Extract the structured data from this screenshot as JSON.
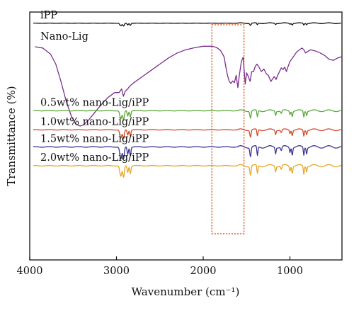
{
  "chart_data": {
    "type": "line",
    "title": "",
    "xlabel": "Wavenumber (cm⁻¹)",
    "ylabel": "Transmittance (%)",
    "x_reversed": true,
    "xlim": [
      4000,
      400
    ],
    "xticks": [
      4000,
      3000,
      2000,
      1000
    ],
    "grid": false,
    "legend": "inline labels above each trace",
    "highlight_box": {
      "x_range": [
        1900,
        1530
      ],
      "style": "dotted",
      "color": "#e0581f"
    },
    "series": [
      {
        "name": "iPP",
        "color": "#111111",
        "baseline": 0.955,
        "amplitude": 0.012,
        "bands": [
          [
            2950,
            16,
            0.9
          ],
          [
            2918,
            12,
            1.0
          ],
          [
            2870,
            10,
            0.6
          ],
          [
            2840,
            10,
            0.7
          ],
          [
            1455,
            10,
            0.7
          ],
          [
            1375,
            8,
            0.6
          ],
          [
            1165,
            8,
            0.4
          ],
          [
            1000,
            8,
            0.3
          ],
          [
            973,
            8,
            0.5
          ],
          [
            840,
            8,
            0.6
          ],
          [
            808,
            8,
            0.4
          ]
        ],
        "wave": 0.08
      },
      {
        "name": "Nano-Lig",
        "color": "#7a2e8f",
        "points": [
          [
            3940,
            0.86
          ],
          [
            3850,
            0.855
          ],
          [
            3760,
            0.83
          ],
          [
            3700,
            0.79
          ],
          [
            3640,
            0.72
          ],
          [
            3580,
            0.64
          ],
          [
            3520,
            0.58
          ],
          [
            3470,
            0.548
          ],
          [
            3420,
            0.54
          ],
          [
            3380,
            0.545
          ],
          [
            3320,
            0.565
          ],
          [
            3250,
            0.595
          ],
          [
            3180,
            0.625
          ],
          [
            3100,
            0.655
          ],
          [
            3020,
            0.675
          ],
          [
            2970,
            0.675
          ],
          [
            2940,
            0.69
          ],
          [
            2920,
            0.66
          ],
          [
            2900,
            0.68
          ],
          [
            2870,
            0.69
          ],
          [
            2850,
            0.7
          ],
          [
            2800,
            0.715
          ],
          [
            2700,
            0.74
          ],
          [
            2600,
            0.765
          ],
          [
            2500,
            0.79
          ],
          [
            2400,
            0.815
          ],
          [
            2300,
            0.835
          ],
          [
            2200,
            0.848
          ],
          [
            2100,
            0.856
          ],
          [
            2000,
            0.862
          ],
          [
            1900,
            0.862
          ],
          [
            1850,
            0.858
          ],
          [
            1800,
            0.845
          ],
          [
            1760,
            0.82
          ],
          [
            1740,
            0.78
          ],
          [
            1720,
            0.745
          ],
          [
            1700,
            0.72
          ],
          [
            1680,
            0.712
          ],
          [
            1660,
            0.722
          ],
          [
            1640,
            0.715
          ],
          [
            1620,
            0.745
          ],
          [
            1600,
            0.695
          ],
          [
            1585,
            0.74
          ],
          [
            1560,
            0.8
          ],
          [
            1540,
            0.818
          ],
          [
            1515,
            0.71
          ],
          [
            1500,
            0.755
          ],
          [
            1480,
            0.74
          ],
          [
            1460,
            0.72
          ],
          [
            1440,
            0.76
          ],
          [
            1420,
            0.76
          ],
          [
            1400,
            0.78
          ],
          [
            1380,
            0.79
          ],
          [
            1360,
            0.78
          ],
          [
            1330,
            0.76
          ],
          [
            1300,
            0.77
          ],
          [
            1270,
            0.75
          ],
          [
            1250,
            0.745
          ],
          [
            1220,
            0.72
          ],
          [
            1200,
            0.73
          ],
          [
            1180,
            0.74
          ],
          [
            1160,
            0.728
          ],
          [
            1140,
            0.745
          ],
          [
            1120,
            0.76
          ],
          [
            1100,
            0.775
          ],
          [
            1080,
            0.768
          ],
          [
            1060,
            0.778
          ],
          [
            1040,
            0.76
          ],
          [
            1030,
            0.772
          ],
          [
            1000,
            0.8
          ],
          [
            960,
            0.82
          ],
          [
            920,
            0.84
          ],
          [
            880,
            0.85
          ],
          [
            860,
            0.855
          ],
          [
            840,
            0.848
          ],
          [
            820,
            0.835
          ],
          [
            800,
            0.84
          ],
          [
            760,
            0.848
          ],
          [
            700,
            0.842
          ],
          [
            650,
            0.835
          ],
          [
            600,
            0.825
          ],
          [
            550,
            0.81
          ],
          [
            500,
            0.805
          ],
          [
            450,
            0.815
          ],
          [
            400,
            0.82
          ]
        ]
      },
      {
        "name": "0.5wt% nano-Lig/iPP",
        "color": "#5aa83a",
        "baseline": 0.602,
        "amplitude": 0.038,
        "bands": [
          [
            2950,
            16,
            0.9
          ],
          [
            2918,
            12,
            1.0
          ],
          [
            2870,
            10,
            0.55
          ],
          [
            2840,
            10,
            0.65
          ],
          [
            1455,
            10,
            0.75
          ],
          [
            1375,
            8,
            0.7
          ],
          [
            1165,
            8,
            0.45
          ],
          [
            1100,
            10,
            0.3
          ],
          [
            1000,
            8,
            0.35
          ],
          [
            973,
            8,
            0.55
          ],
          [
            840,
            8,
            0.65
          ],
          [
            808,
            8,
            0.45
          ]
        ],
        "wave": 0.06
      },
      {
        "name": "1.0wt% nano-Lig/iPP",
        "color": "#d2492a",
        "baseline": 0.525,
        "amplitude": 0.038,
        "bands": [
          [
            2950,
            16,
            0.9
          ],
          [
            2918,
            12,
            1.0
          ],
          [
            2870,
            10,
            0.55
          ],
          [
            2840,
            10,
            0.65
          ],
          [
            1455,
            10,
            0.75
          ],
          [
            1375,
            8,
            0.7
          ],
          [
            1165,
            8,
            0.45
          ],
          [
            1100,
            10,
            0.3
          ],
          [
            1000,
            8,
            0.35
          ],
          [
            973,
            8,
            0.55
          ],
          [
            840,
            8,
            0.65
          ],
          [
            808,
            8,
            0.45
          ]
        ],
        "wave": 0.06
      },
      {
        "name": "1.5wt% nano-Lig/iPP",
        "color": "#3b3593",
        "baseline": 0.456,
        "amplitude": 0.05,
        "bands": [
          [
            2950,
            16,
            1.0
          ],
          [
            2918,
            12,
            1.0
          ],
          [
            2870,
            10,
            0.6
          ],
          [
            2840,
            10,
            0.7
          ],
          [
            1455,
            10,
            0.75
          ],
          [
            1375,
            8,
            0.75
          ],
          [
            1165,
            8,
            0.5
          ],
          [
            1100,
            10,
            0.3
          ],
          [
            1000,
            8,
            0.4
          ],
          [
            973,
            8,
            0.6
          ],
          [
            840,
            8,
            0.65
          ],
          [
            808,
            8,
            0.5
          ]
        ],
        "wave": 0.06
      },
      {
        "name": "2.0wt% nano-Lig/iPP",
        "color": "#e5a727",
        "baseline": 0.38,
        "amplitude": 0.048,
        "bands": [
          [
            2950,
            16,
            0.9
          ],
          [
            2918,
            12,
            1.0
          ],
          [
            2870,
            10,
            0.55
          ],
          [
            2840,
            10,
            0.65
          ],
          [
            1455,
            10,
            0.75
          ],
          [
            1375,
            8,
            0.7
          ],
          [
            1165,
            8,
            0.45
          ],
          [
            1100,
            10,
            0.3
          ],
          [
            1000,
            8,
            0.4
          ],
          [
            973,
            8,
            0.55
          ],
          [
            840,
            8,
            0.7
          ],
          [
            808,
            8,
            0.45
          ]
        ],
        "wave": 0.06
      }
    ]
  }
}
